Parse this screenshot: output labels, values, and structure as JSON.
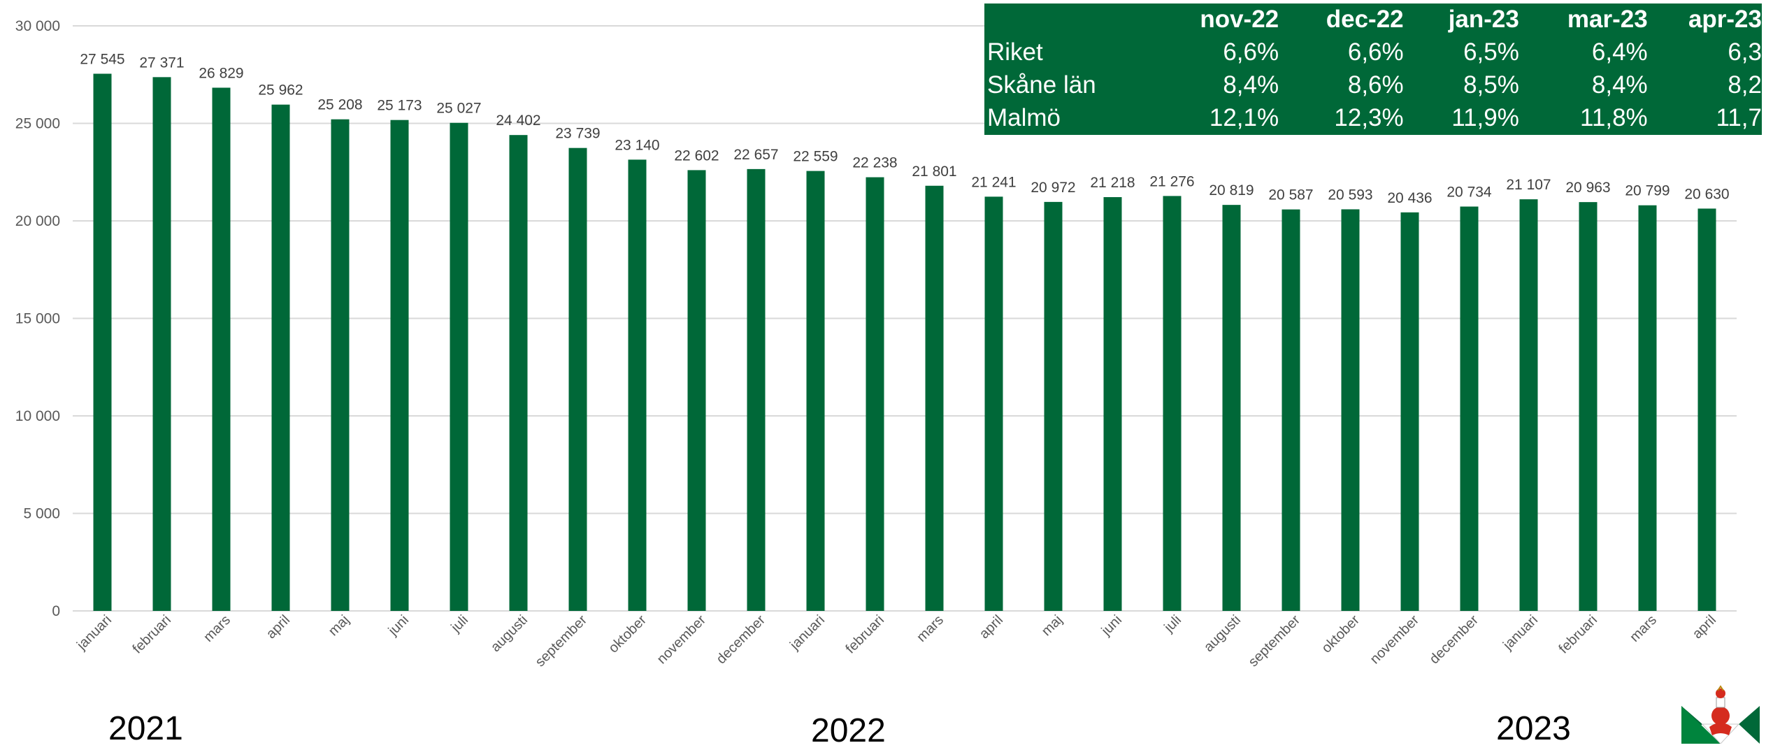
{
  "colors": {
    "bar": "#006838",
    "table_bg": "#006838",
    "grid": "#d9d9d9"
  },
  "table": {
    "columns": [
      "nov-22",
      "dec-22",
      "jan-23",
      "mar-23",
      "apr-23"
    ],
    "rows": [
      {
        "region": "Riket",
        "values": [
          "6,6%",
          "6,6%",
          "6,5%",
          "6,4%",
          "6,3"
        ]
      },
      {
        "region": "Skåne län",
        "values": [
          "8,4%",
          "8,6%",
          "8,5%",
          "8,4%",
          "8,2"
        ]
      },
      {
        "region": "Malmö",
        "values": [
          "12,1%",
          "12,3%",
          "11,9%",
          "11,8%",
          "11,7"
        ]
      }
    ]
  },
  "years": {
    "y2021": "2021",
    "y2022": "2022",
    "y2023": "2023"
  },
  "logo": {
    "icon": "malmo-coat-of-arms-icon"
  },
  "chart_data": {
    "type": "bar",
    "ylim": [
      0,
      30000
    ],
    "yticks": [
      {
        "value": 0,
        "label": "0"
      },
      {
        "value": 5000,
        "label": "5 000"
      },
      {
        "value": 10000,
        "label": "10 000"
      },
      {
        "value": 15000,
        "label": "15 000"
      },
      {
        "value": 20000,
        "label": "20 000"
      },
      {
        "value": 25000,
        "label": "25 000"
      },
      {
        "value": 30000,
        "label": "30 000"
      }
    ],
    "grid": true,
    "categories": [
      "januari",
      "februari",
      "mars",
      "april",
      "maj",
      "juni",
      "juli",
      "augusti",
      "september",
      "oktober",
      "november",
      "december",
      "januari",
      "februari",
      "mars",
      "april",
      "maj",
      "juni",
      "juli",
      "augusti",
      "september",
      "oktober",
      "november",
      "december",
      "januari",
      "februari",
      "mars",
      "april"
    ],
    "values": [
      27545,
      27371,
      26829,
      25962,
      25208,
      25173,
      25027,
      24402,
      23739,
      23140,
      22602,
      22657,
      22559,
      22238,
      21801,
      21241,
      20972,
      21218,
      21276,
      20819,
      20587,
      20593,
      20436,
      20734,
      21107,
      20963,
      20799,
      20630
    ],
    "data_labels": [
      "27 545",
      "27 371",
      "26 829",
      "25 962",
      "25 208",
      "25 173",
      "25 027",
      "24 402",
      "23 739",
      "23 140",
      "22 602",
      "22 657",
      "22 559",
      "22 238",
      "21 801",
      "21 241",
      "20 972",
      "21 218",
      "21 276",
      "20 819",
      "20 587",
      "20 593",
      "20 436",
      "20 734",
      "21 107",
      "20 963",
      "20 799",
      "20 630"
    ]
  }
}
